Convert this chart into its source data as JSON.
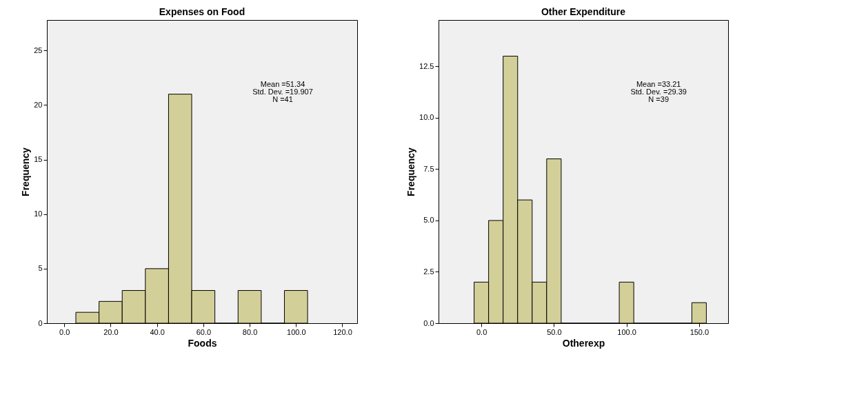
{
  "chart_data": [
    {
      "type": "histogram",
      "title": "Expenses on Food",
      "xlabel": "Foods",
      "ylabel": "Frequency",
      "bins": [
        5,
        15,
        25,
        35,
        45,
        55,
        65,
        75,
        85,
        95,
        105
      ],
      "values": [
        1,
        2,
        3,
        5,
        21,
        3,
        0,
        3,
        0,
        3
      ],
      "color": "#d3cf98",
      "xlim": [
        -7.5,
        126.4
      ],
      "xticks": [
        {
          "value": 0,
          "label": "0.0"
        },
        {
          "value": 20,
          "label": "20.0"
        },
        {
          "value": 40,
          "label": "40.0"
        },
        {
          "value": 60,
          "label": "60.0"
        },
        {
          "value": 80,
          "label": "80.0"
        },
        {
          "value": 100,
          "label": "100.0"
        },
        {
          "value": 120,
          "label": "120.0"
        }
      ],
      "ylim": [
        0,
        27.8
      ],
      "yticks": [
        0,
        5,
        10,
        15,
        20,
        25
      ],
      "grid": false,
      "annotations": [
        "Mean =51.34",
        "Std. Dev. =19.907",
        "N =41"
      ]
    },
    {
      "type": "histogram",
      "title": "Other Expenditure",
      "xlabel": "Otherexp",
      "ylabel": "Frequency",
      "bins": [
        -5,
        5,
        15,
        25,
        35,
        45,
        55,
        65,
        75,
        85,
        95,
        105,
        115,
        125,
        135,
        145,
        155
      ],
      "values": [
        2,
        5,
        13,
        6,
        2,
        8,
        0,
        0,
        0,
        0,
        2,
        0,
        0,
        0,
        0,
        1
      ],
      "color": "#d3cf98",
      "xlim": [
        -29.5,
        170
      ],
      "xticks": [
        {
          "value": 0,
          "label": "0.0"
        },
        {
          "value": 50,
          "label": "50.0"
        },
        {
          "value": 100,
          "label": "100.0"
        },
        {
          "value": 150,
          "label": "150.0"
        }
      ],
      "ylim": [
        0,
        14.76
      ],
      "yticks": [
        {
          "value": 0,
          "label": "0.0"
        },
        {
          "value": 2.5,
          "label": "2.5"
        },
        {
          "value": 5,
          "label": "5.0"
        },
        {
          "value": 7.5,
          "label": "7.5"
        },
        {
          "value": 10,
          "label": "10.0"
        },
        {
          "value": 12.5,
          "label": "12.5"
        }
      ],
      "grid": false,
      "annotations": [
        "Mean =33.21",
        "Std. Dev. =29.39",
        "N =39"
      ]
    }
  ]
}
